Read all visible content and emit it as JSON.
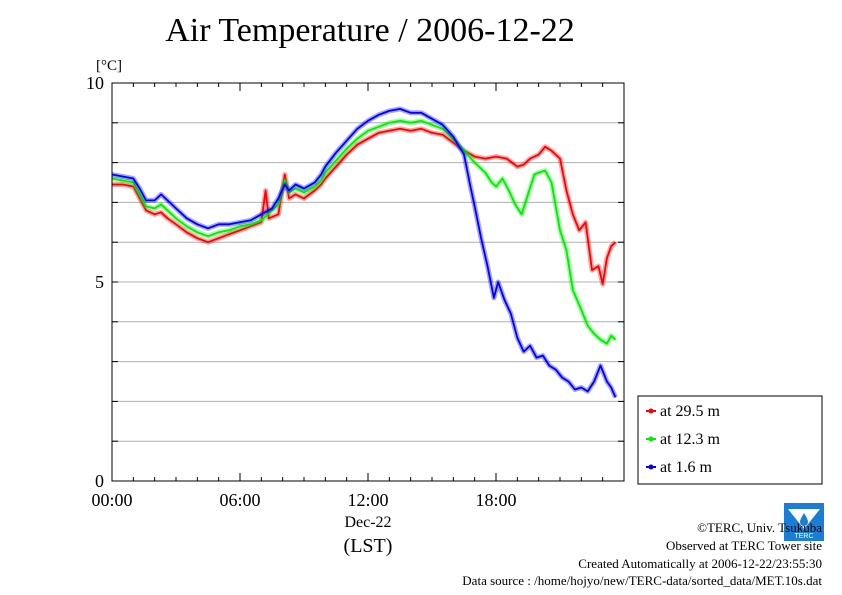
{
  "chart_data": {
    "type": "line",
    "title": "Air Temperature / 2006-12-22",
    "ylabel": "[°C]",
    "ylim": [
      0,
      10
    ],
    "yticks": [
      0,
      5,
      10
    ],
    "xlim": [
      "00:00",
      "24:00"
    ],
    "xticks": [
      "00:00",
      "06:00",
      "12:00",
      "18:00"
    ],
    "xlabel_date": "Dec-22",
    "xlabel_unit": "(LST)",
    "grid": true,
    "legend_position": "bottom-right, outside plot",
    "series": [
      {
        "name": "at 29.5 m",
        "color": "#ff0000",
        "points": [
          [
            0.0,
            7.45
          ],
          [
            0.5,
            7.45
          ],
          [
            1.0,
            7.4
          ],
          [
            1.3,
            7.1
          ],
          [
            1.6,
            6.8
          ],
          [
            2.0,
            6.7
          ],
          [
            2.3,
            6.75
          ],
          [
            2.6,
            6.6
          ],
          [
            3.0,
            6.45
          ],
          [
            3.5,
            6.25
          ],
          [
            4.0,
            6.1
          ],
          [
            4.5,
            6.0
          ],
          [
            5.0,
            6.1
          ],
          [
            5.5,
            6.2
          ],
          [
            6.0,
            6.3
          ],
          [
            6.5,
            6.4
          ],
          [
            7.0,
            6.5
          ],
          [
            7.2,
            7.3
          ],
          [
            7.35,
            6.6
          ],
          [
            7.8,
            6.7
          ],
          [
            8.1,
            7.7
          ],
          [
            8.3,
            7.1
          ],
          [
            8.6,
            7.2
          ],
          [
            9.0,
            7.1
          ],
          [
            9.5,
            7.3
          ],
          [
            9.8,
            7.45
          ],
          [
            10.0,
            7.6
          ],
          [
            10.5,
            7.9
          ],
          [
            11.0,
            8.2
          ],
          [
            11.5,
            8.45
          ],
          [
            12.0,
            8.6
          ],
          [
            12.5,
            8.75
          ],
          [
            13.0,
            8.8
          ],
          [
            13.5,
            8.85
          ],
          [
            14.0,
            8.8
          ],
          [
            14.5,
            8.85
          ],
          [
            15.0,
            8.75
          ],
          [
            15.5,
            8.7
          ],
          [
            16.0,
            8.5
          ],
          [
            16.5,
            8.3
          ],
          [
            17.0,
            8.15
          ],
          [
            17.5,
            8.1
          ],
          [
            18.0,
            8.15
          ],
          [
            18.5,
            8.1
          ],
          [
            19.0,
            7.9
          ],
          [
            19.3,
            7.95
          ],
          [
            19.6,
            8.1
          ],
          [
            20.0,
            8.2
          ],
          [
            20.3,
            8.4
          ],
          [
            20.6,
            8.3
          ],
          [
            21.0,
            8.1
          ],
          [
            21.3,
            7.3
          ],
          [
            21.6,
            6.7
          ],
          [
            21.9,
            6.3
          ],
          [
            22.2,
            6.5
          ],
          [
            22.5,
            5.3
          ],
          [
            22.8,
            5.4
          ],
          [
            23.0,
            4.95
          ],
          [
            23.2,
            5.6
          ],
          [
            23.4,
            5.9
          ],
          [
            23.6,
            6.0
          ]
        ]
      },
      {
        "name": "at 12.3 m",
        "color": "#00ee00",
        "points": [
          [
            0.0,
            7.6
          ],
          [
            0.5,
            7.55
          ],
          [
            1.0,
            7.5
          ],
          [
            1.3,
            7.2
          ],
          [
            1.6,
            6.9
          ],
          [
            2.0,
            6.85
          ],
          [
            2.3,
            6.95
          ],
          [
            2.6,
            6.8
          ],
          [
            3.0,
            6.6
          ],
          [
            3.5,
            6.4
          ],
          [
            4.0,
            6.25
          ],
          [
            4.5,
            6.15
          ],
          [
            5.0,
            6.25
          ],
          [
            5.5,
            6.3
          ],
          [
            6.0,
            6.4
          ],
          [
            6.5,
            6.45
          ],
          [
            7.0,
            6.55
          ],
          [
            7.5,
            6.8
          ],
          [
            7.8,
            6.95
          ],
          [
            8.1,
            7.55
          ],
          [
            8.3,
            7.25
          ],
          [
            8.6,
            7.35
          ],
          [
            9.0,
            7.25
          ],
          [
            9.5,
            7.4
          ],
          [
            9.8,
            7.55
          ],
          [
            10.0,
            7.75
          ],
          [
            10.5,
            8.05
          ],
          [
            11.0,
            8.35
          ],
          [
            11.5,
            8.6
          ],
          [
            12.0,
            8.8
          ],
          [
            12.5,
            8.9
          ],
          [
            13.0,
            9.0
          ],
          [
            13.5,
            9.05
          ],
          [
            14.0,
            9.0
          ],
          [
            14.5,
            9.05
          ],
          [
            15.0,
            8.95
          ],
          [
            15.5,
            8.85
          ],
          [
            16.0,
            8.6
          ],
          [
            16.5,
            8.3
          ],
          [
            17.0,
            8.0
          ],
          [
            17.5,
            7.75
          ],
          [
            17.8,
            7.5
          ],
          [
            18.0,
            7.4
          ],
          [
            18.3,
            7.6
          ],
          [
            18.6,
            7.3
          ],
          [
            18.9,
            6.95
          ],
          [
            19.2,
            6.7
          ],
          [
            19.5,
            7.2
          ],
          [
            19.8,
            7.7
          ],
          [
            20.0,
            7.75
          ],
          [
            20.3,
            7.8
          ],
          [
            20.6,
            7.5
          ],
          [
            21.0,
            6.3
          ],
          [
            21.3,
            5.8
          ],
          [
            21.6,
            4.8
          ],
          [
            22.0,
            4.3
          ],
          [
            22.3,
            3.9
          ],
          [
            22.6,
            3.7
          ],
          [
            22.9,
            3.55
          ],
          [
            23.2,
            3.45
          ],
          [
            23.4,
            3.65
          ],
          [
            23.6,
            3.55
          ]
        ]
      },
      {
        "name": "at 1.6 m",
        "color": "#0000ff",
        "points": [
          [
            0.0,
            7.7
          ],
          [
            0.5,
            7.65
          ],
          [
            1.0,
            7.6
          ],
          [
            1.3,
            7.35
          ],
          [
            1.6,
            7.05
          ],
          [
            2.0,
            7.05
          ],
          [
            2.3,
            7.2
          ],
          [
            2.6,
            7.05
          ],
          [
            3.0,
            6.85
          ],
          [
            3.5,
            6.6
          ],
          [
            4.0,
            6.45
          ],
          [
            4.5,
            6.35
          ],
          [
            5.0,
            6.45
          ],
          [
            5.5,
            6.45
          ],
          [
            6.0,
            6.5
          ],
          [
            6.5,
            6.55
          ],
          [
            7.0,
            6.7
          ],
          [
            7.5,
            6.85
          ],
          [
            7.8,
            7.1
          ],
          [
            8.1,
            7.45
          ],
          [
            8.3,
            7.3
          ],
          [
            8.6,
            7.45
          ],
          [
            9.0,
            7.35
          ],
          [
            9.5,
            7.5
          ],
          [
            9.8,
            7.7
          ],
          [
            10.0,
            7.9
          ],
          [
            10.5,
            8.25
          ],
          [
            11.0,
            8.55
          ],
          [
            11.5,
            8.85
          ],
          [
            12.0,
            9.05
          ],
          [
            12.5,
            9.2
          ],
          [
            13.0,
            9.3
          ],
          [
            13.5,
            9.35
          ],
          [
            14.0,
            9.25
          ],
          [
            14.5,
            9.25
          ],
          [
            15.0,
            9.1
          ],
          [
            15.5,
            8.95
          ],
          [
            16.0,
            8.65
          ],
          [
            16.5,
            8.2
          ],
          [
            16.8,
            7.4
          ],
          [
            17.0,
            6.9
          ],
          [
            17.3,
            6.1
          ],
          [
            17.6,
            5.4
          ],
          [
            17.9,
            4.6
          ],
          [
            18.1,
            5.0
          ],
          [
            18.4,
            4.55
          ],
          [
            18.7,
            4.2
          ],
          [
            19.0,
            3.6
          ],
          [
            19.3,
            3.25
          ],
          [
            19.6,
            3.4
          ],
          [
            19.9,
            3.1
          ],
          [
            20.2,
            3.15
          ],
          [
            20.5,
            2.9
          ],
          [
            20.8,
            2.8
          ],
          [
            21.1,
            2.6
          ],
          [
            21.4,
            2.5
          ],
          [
            21.7,
            2.3
          ],
          [
            22.0,
            2.35
          ],
          [
            22.3,
            2.25
          ],
          [
            22.6,
            2.5
          ],
          [
            22.9,
            2.9
          ],
          [
            23.2,
            2.5
          ],
          [
            23.4,
            2.35
          ],
          [
            23.6,
            2.1
          ]
        ]
      }
    ]
  },
  "footer": {
    "copyright": "©TERC, Univ. Tsukuba",
    "site": "Observed at TERC Tower site",
    "created": "Created Automatically at 2006-12-22/23:55:30",
    "source": "Data source : /home/hojyo/new/TERC-data/sorted_data/MET.10s.dat"
  },
  "logo": {
    "icon": "terc-logo-icon",
    "text": "TERC",
    "color": "#1a7fd4"
  }
}
